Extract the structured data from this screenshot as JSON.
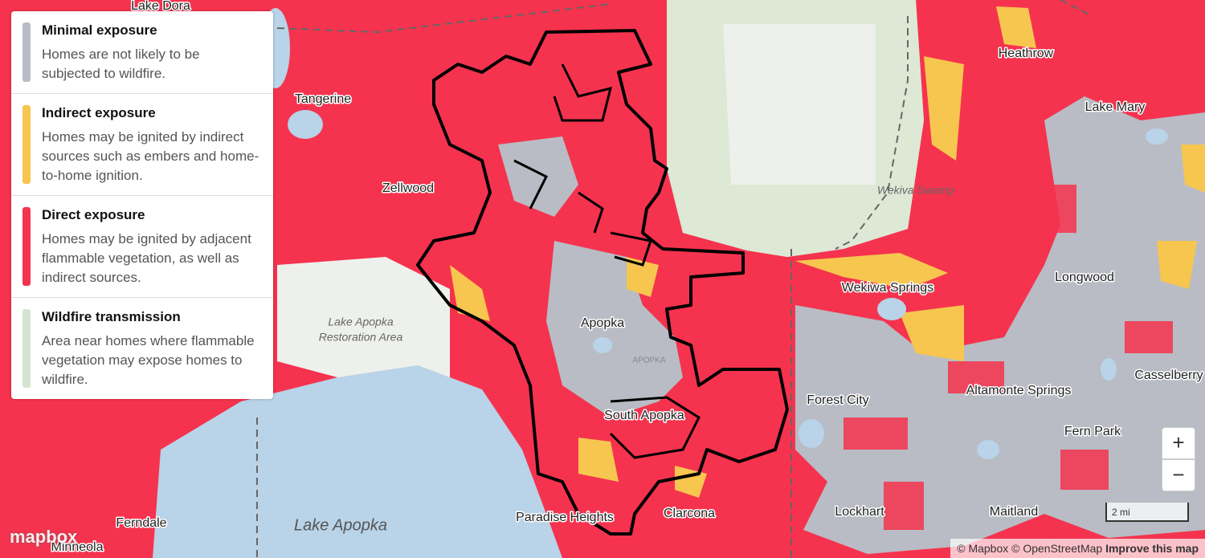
{
  "legend": {
    "items": [
      {
        "title": "Minimal exposure",
        "description": "Homes are not likely to be subjected to wildfire.",
        "color": "#b9bcc4"
      },
      {
        "title": "Indirect exposure",
        "description": "Homes may be ignited by indirect sources such as embers and home-to-home ignition.",
        "color": "#f7c64f"
      },
      {
        "title": "Direct exposure",
        "description": "Homes may be ignited by adjacent flammable vegetation, as well as indirect sources.",
        "color": "#f5334e"
      },
      {
        "title": "Wildfire transmission",
        "description": "Area near homes where flammable vegetation may expose homes to wildfire.",
        "color": "#d6e4d0"
      }
    ]
  },
  "map": {
    "labels": [
      "Lake Dora",
      "Tangerine",
      "Zellwood",
      "Heathrow",
      "Lake Mary",
      "Wekiva Swamp",
      "Wekiwa Springs",
      "Longwood",
      "Lake Apopka",
      "Restoration Area",
      "Apopka",
      "APOPKA",
      "Casselberry",
      "Forest City",
      "Altamonte Springs",
      "South Apopka",
      "Fern Park",
      "Paradise Heights",
      "Clarcona",
      "Lockhart",
      "Maitland",
      "Lake Apopka",
      "Ferndale",
      "Minneola"
    ]
  },
  "controls": {
    "zoom_in": "+",
    "zoom_out": "−",
    "scale": "2 mi"
  },
  "attribution": {
    "logo": "mapbox",
    "mapbox": "© Mapbox",
    "osm": "© OpenStreetMap",
    "improve": "Improve this map"
  }
}
